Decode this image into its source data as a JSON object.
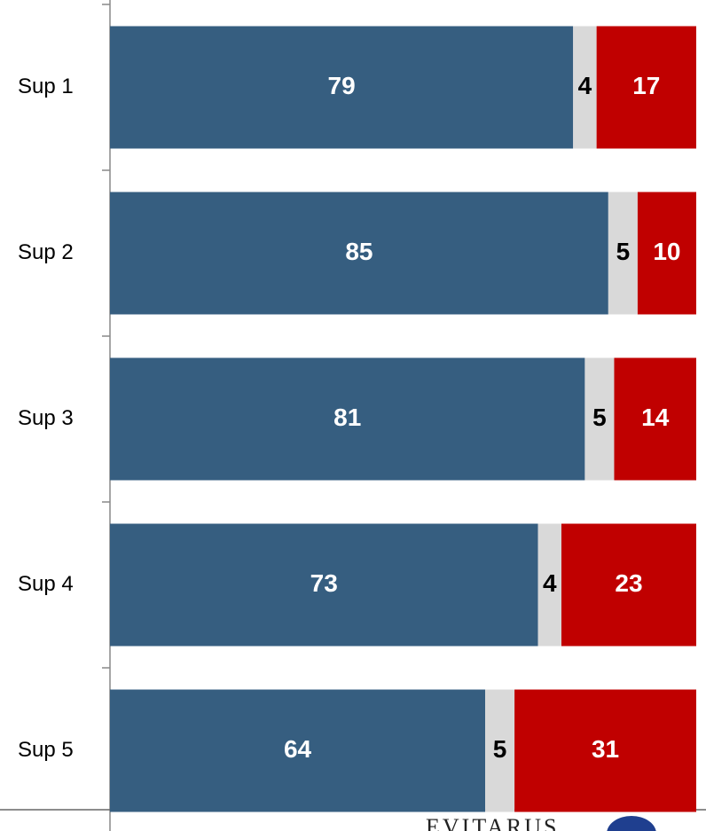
{
  "chart_data": {
    "type": "stacked_barh",
    "categories": [
      "Sup 1",
      "Sup 2",
      "Sup 3",
      "Sup 4",
      "Sup 5"
    ],
    "series": [
      {
        "color": "#365e80",
        "label_color": "#ffffff",
        "values": [
          79,
          85,
          81,
          73,
          64
        ]
      },
      {
        "color": "#d9d9d9",
        "label_color": "#000000",
        "values": [
          4,
          5,
          5,
          4,
          5
        ]
      },
      {
        "color": "#c00000",
        "label_color": "#ffffff",
        "values": [
          17,
          10,
          14,
          23,
          31
        ]
      }
    ],
    "xlim": [
      0,
      100
    ],
    "logo": "EVITARUS"
  }
}
